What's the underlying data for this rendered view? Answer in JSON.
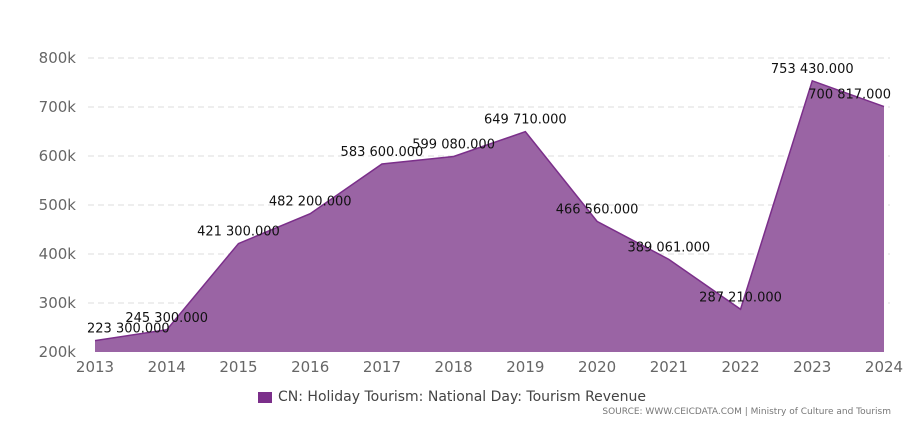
{
  "chart_data": {
    "type": "area",
    "title": "",
    "xlabel": "",
    "ylabel": "",
    "x": [
      2013,
      2014,
      2015,
      2016,
      2017,
      2018,
      2019,
      2020,
      2021,
      2022,
      2023,
      2024
    ],
    "series": [
      {
        "name": "CN: Holiday Tourism: National Day: Tourism Revenue",
        "values": [
          223300,
          245300,
          421300,
          482200,
          583600,
          599080,
          649710,
          466560,
          389061,
          287210,
          753430,
          700817
        ],
        "labels": [
          "223 300.000",
          "245 300.000",
          "421 300.000",
          "482 200.000",
          "583 600.000",
          "599 080.000",
          "649 710.000",
          "466 560.000",
          "389 061.000",
          "287 210.000",
          "753 430.000",
          "700 817.000"
        ]
      }
    ],
    "ylim": [
      200000,
      800000
    ],
    "yticks": [
      200000,
      300000,
      400000,
      500000,
      600000,
      700000,
      800000
    ],
    "ytick_labels": [
      "200k",
      "300k",
      "400k",
      "500k",
      "600k",
      "700k",
      "800k"
    ],
    "xtick_labels": [
      "2013",
      "2014",
      "2015",
      "2016",
      "2017",
      "2018",
      "2019",
      "2020",
      "2021",
      "2022",
      "2023",
      "2024"
    ],
    "grid": true,
    "legend_position": "bottom-center"
  },
  "colors": {
    "area_fill": "#9a64a4",
    "area_line": "#7b2f8a",
    "legend_swatch": "#7b2f8a"
  },
  "legend": {
    "label": "CN: Holiday Tourism: National Day: Tourism Revenue"
  },
  "source": {
    "text": "SOURCE: WWW.CEICDATA.COM | Ministry of Culture and Tourism"
  }
}
